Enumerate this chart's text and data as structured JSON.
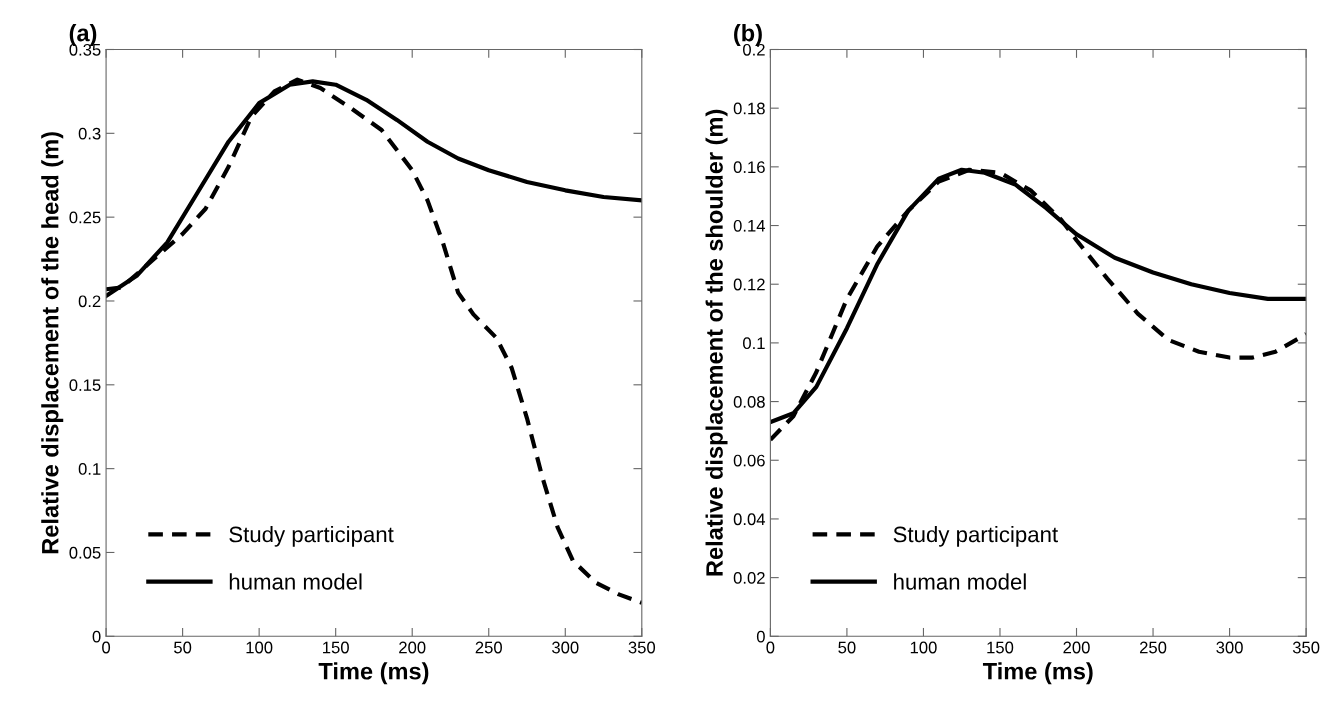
{
  "chart_data": [
    {
      "type": "line",
      "title": "(a)",
      "xlabel": "Time (ms)",
      "ylabel": "Relative displacement of the head (m)",
      "xlim": [
        0,
        350
      ],
      "xticks": [
        0,
        50,
        100,
        150,
        200,
        250,
        300,
        350
      ],
      "ylim": [
        0,
        0.35
      ],
      "yticks": [
        0,
        0.05,
        0.1,
        0.15,
        0.2,
        0.25,
        0.3,
        0.35
      ],
      "grid": false,
      "legend": "bottom left",
      "series": [
        {
          "name": "Study participant",
          "color": "#000000",
          "line_style": "dashed",
          "x": [
            0,
            10,
            25,
            50,
            65,
            80,
            95,
            110,
            125,
            140,
            160,
            180,
            200,
            210,
            220,
            230,
            240,
            255,
            265,
            275,
            285,
            295,
            305,
            320,
            335,
            350
          ],
          "values": [
            0.207,
            0.208,
            0.22,
            0.24,
            0.255,
            0.28,
            0.31,
            0.325,
            0.332,
            0.327,
            0.315,
            0.302,
            0.278,
            0.26,
            0.235,
            0.205,
            0.192,
            0.178,
            0.16,
            0.13,
            0.095,
            0.065,
            0.045,
            0.032,
            0.025,
            0.02
          ]
        },
        {
          "name": "human model",
          "color": "#000000",
          "line_style": "solid",
          "x": [
            0,
            20,
            40,
            60,
            80,
            100,
            120,
            135,
            150,
            170,
            190,
            210,
            230,
            250,
            275,
            300,
            325,
            350
          ],
          "values": [
            0.203,
            0.215,
            0.235,
            0.265,
            0.295,
            0.318,
            0.329,
            0.331,
            0.329,
            0.32,
            0.308,
            0.295,
            0.285,
            0.278,
            0.271,
            0.266,
            0.262,
            0.26
          ]
        }
      ]
    },
    {
      "type": "line",
      "title": "(b)",
      "xlabel": "Time (ms)",
      "ylabel": "Relative displacement of the shoulder (m)",
      "xlim": [
        0,
        350
      ],
      "xticks": [
        0,
        50,
        100,
        150,
        200,
        250,
        300,
        350
      ],
      "ylim": [
        0,
        0.2
      ],
      "yticks": [
        0,
        0.02,
        0.04,
        0.06,
        0.08,
        0.1,
        0.12,
        0.14,
        0.16,
        0.18,
        0.2
      ],
      "grid": false,
      "legend": "bottom left",
      "series": [
        {
          "name": "Study participant",
          "color": "#000000",
          "line_style": "dashed",
          "x": [
            0,
            15,
            30,
            50,
            70,
            90,
            110,
            130,
            150,
            170,
            190,
            200,
            220,
            240,
            260,
            280,
            300,
            315,
            330,
            350
          ],
          "values": [
            0.067,
            0.075,
            0.09,
            0.115,
            0.133,
            0.145,
            0.155,
            0.159,
            0.158,
            0.152,
            0.142,
            0.135,
            0.122,
            0.11,
            0.101,
            0.097,
            0.095,
            0.095,
            0.097,
            0.103
          ]
        },
        {
          "name": "human model",
          "color": "#000000",
          "line_style": "solid",
          "x": [
            0,
            15,
            30,
            50,
            70,
            90,
            110,
            125,
            140,
            160,
            180,
            200,
            225,
            250,
            275,
            300,
            325,
            350
          ],
          "values": [
            0.073,
            0.076,
            0.085,
            0.105,
            0.127,
            0.145,
            0.156,
            0.159,
            0.158,
            0.154,
            0.146,
            0.137,
            0.129,
            0.124,
            0.12,
            0.117,
            0.115,
            0.115
          ]
        }
      ]
    }
  ]
}
